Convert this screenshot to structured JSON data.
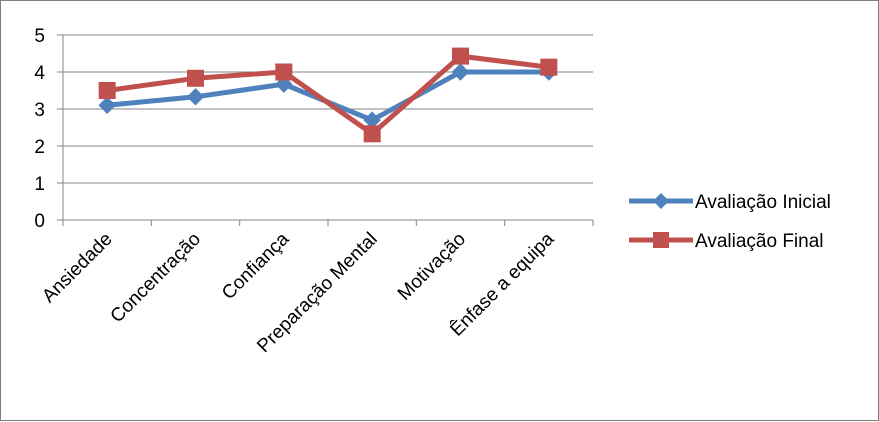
{
  "chart_data": {
    "type": "line",
    "categories": [
      "Ansiedade",
      "Concentração",
      "Confiança",
      "Preparação Mental",
      "Motivação",
      "Ênfase a equipa"
    ],
    "series": [
      {
        "name": "Avaliação Inicial",
        "values": [
          3.1,
          3.33,
          3.67,
          2.7,
          4.0,
          4.0
        ],
        "color": "#4f81bd",
        "marker": "diamond"
      },
      {
        "name": "Avaliação Final",
        "values": [
          3.5,
          3.83,
          4.0,
          2.33,
          4.43,
          4.13
        ],
        "color": "#c0504d",
        "marker": "square"
      }
    ],
    "ylim": [
      0,
      5
    ],
    "yticks": [
      "0",
      "1",
      "2",
      "3",
      "4",
      "5"
    ],
    "grid": true,
    "legend_position": "right"
  }
}
